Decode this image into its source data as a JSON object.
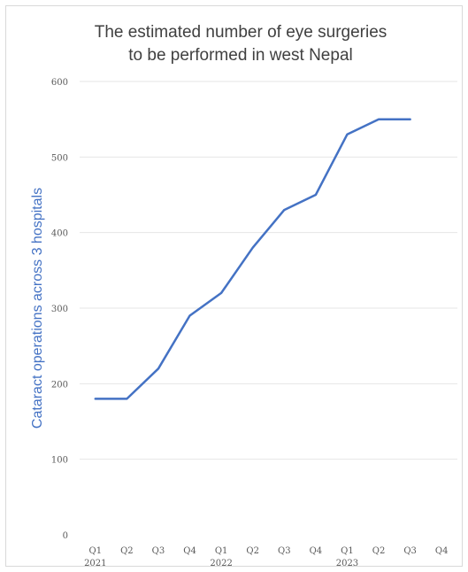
{
  "chart_data": {
    "type": "line",
    "title_lines": [
      "The estimated number of eye surgeries",
      "to be performed in west Nepal"
    ],
    "xlabel": "",
    "ylabel": "Cataract operations across 3 hospitals",
    "categories": [
      "Q1",
      "Q2",
      "Q3",
      "Q4",
      "Q1",
      "Q2",
      "Q3",
      "Q4",
      "Q1",
      "Q2",
      "Q3",
      "Q4"
    ],
    "year_labels": [
      {
        "index": 0,
        "label": "2021"
      },
      {
        "index": 4,
        "label": "2022"
      },
      {
        "index": 8,
        "label": "2023"
      }
    ],
    "series": [
      {
        "values": [
          180,
          180,
          220,
          290,
          320,
          380,
          430,
          450,
          530,
          550,
          550,
          null
        ],
        "color": "#4472c4"
      }
    ],
    "ylim": [
      0,
      600
    ],
    "yticks": [
      0,
      100,
      200,
      300,
      400,
      500,
      600
    ],
    "grid": true,
    "gridColor": "#e6e6e6",
    "legend": "none"
  }
}
